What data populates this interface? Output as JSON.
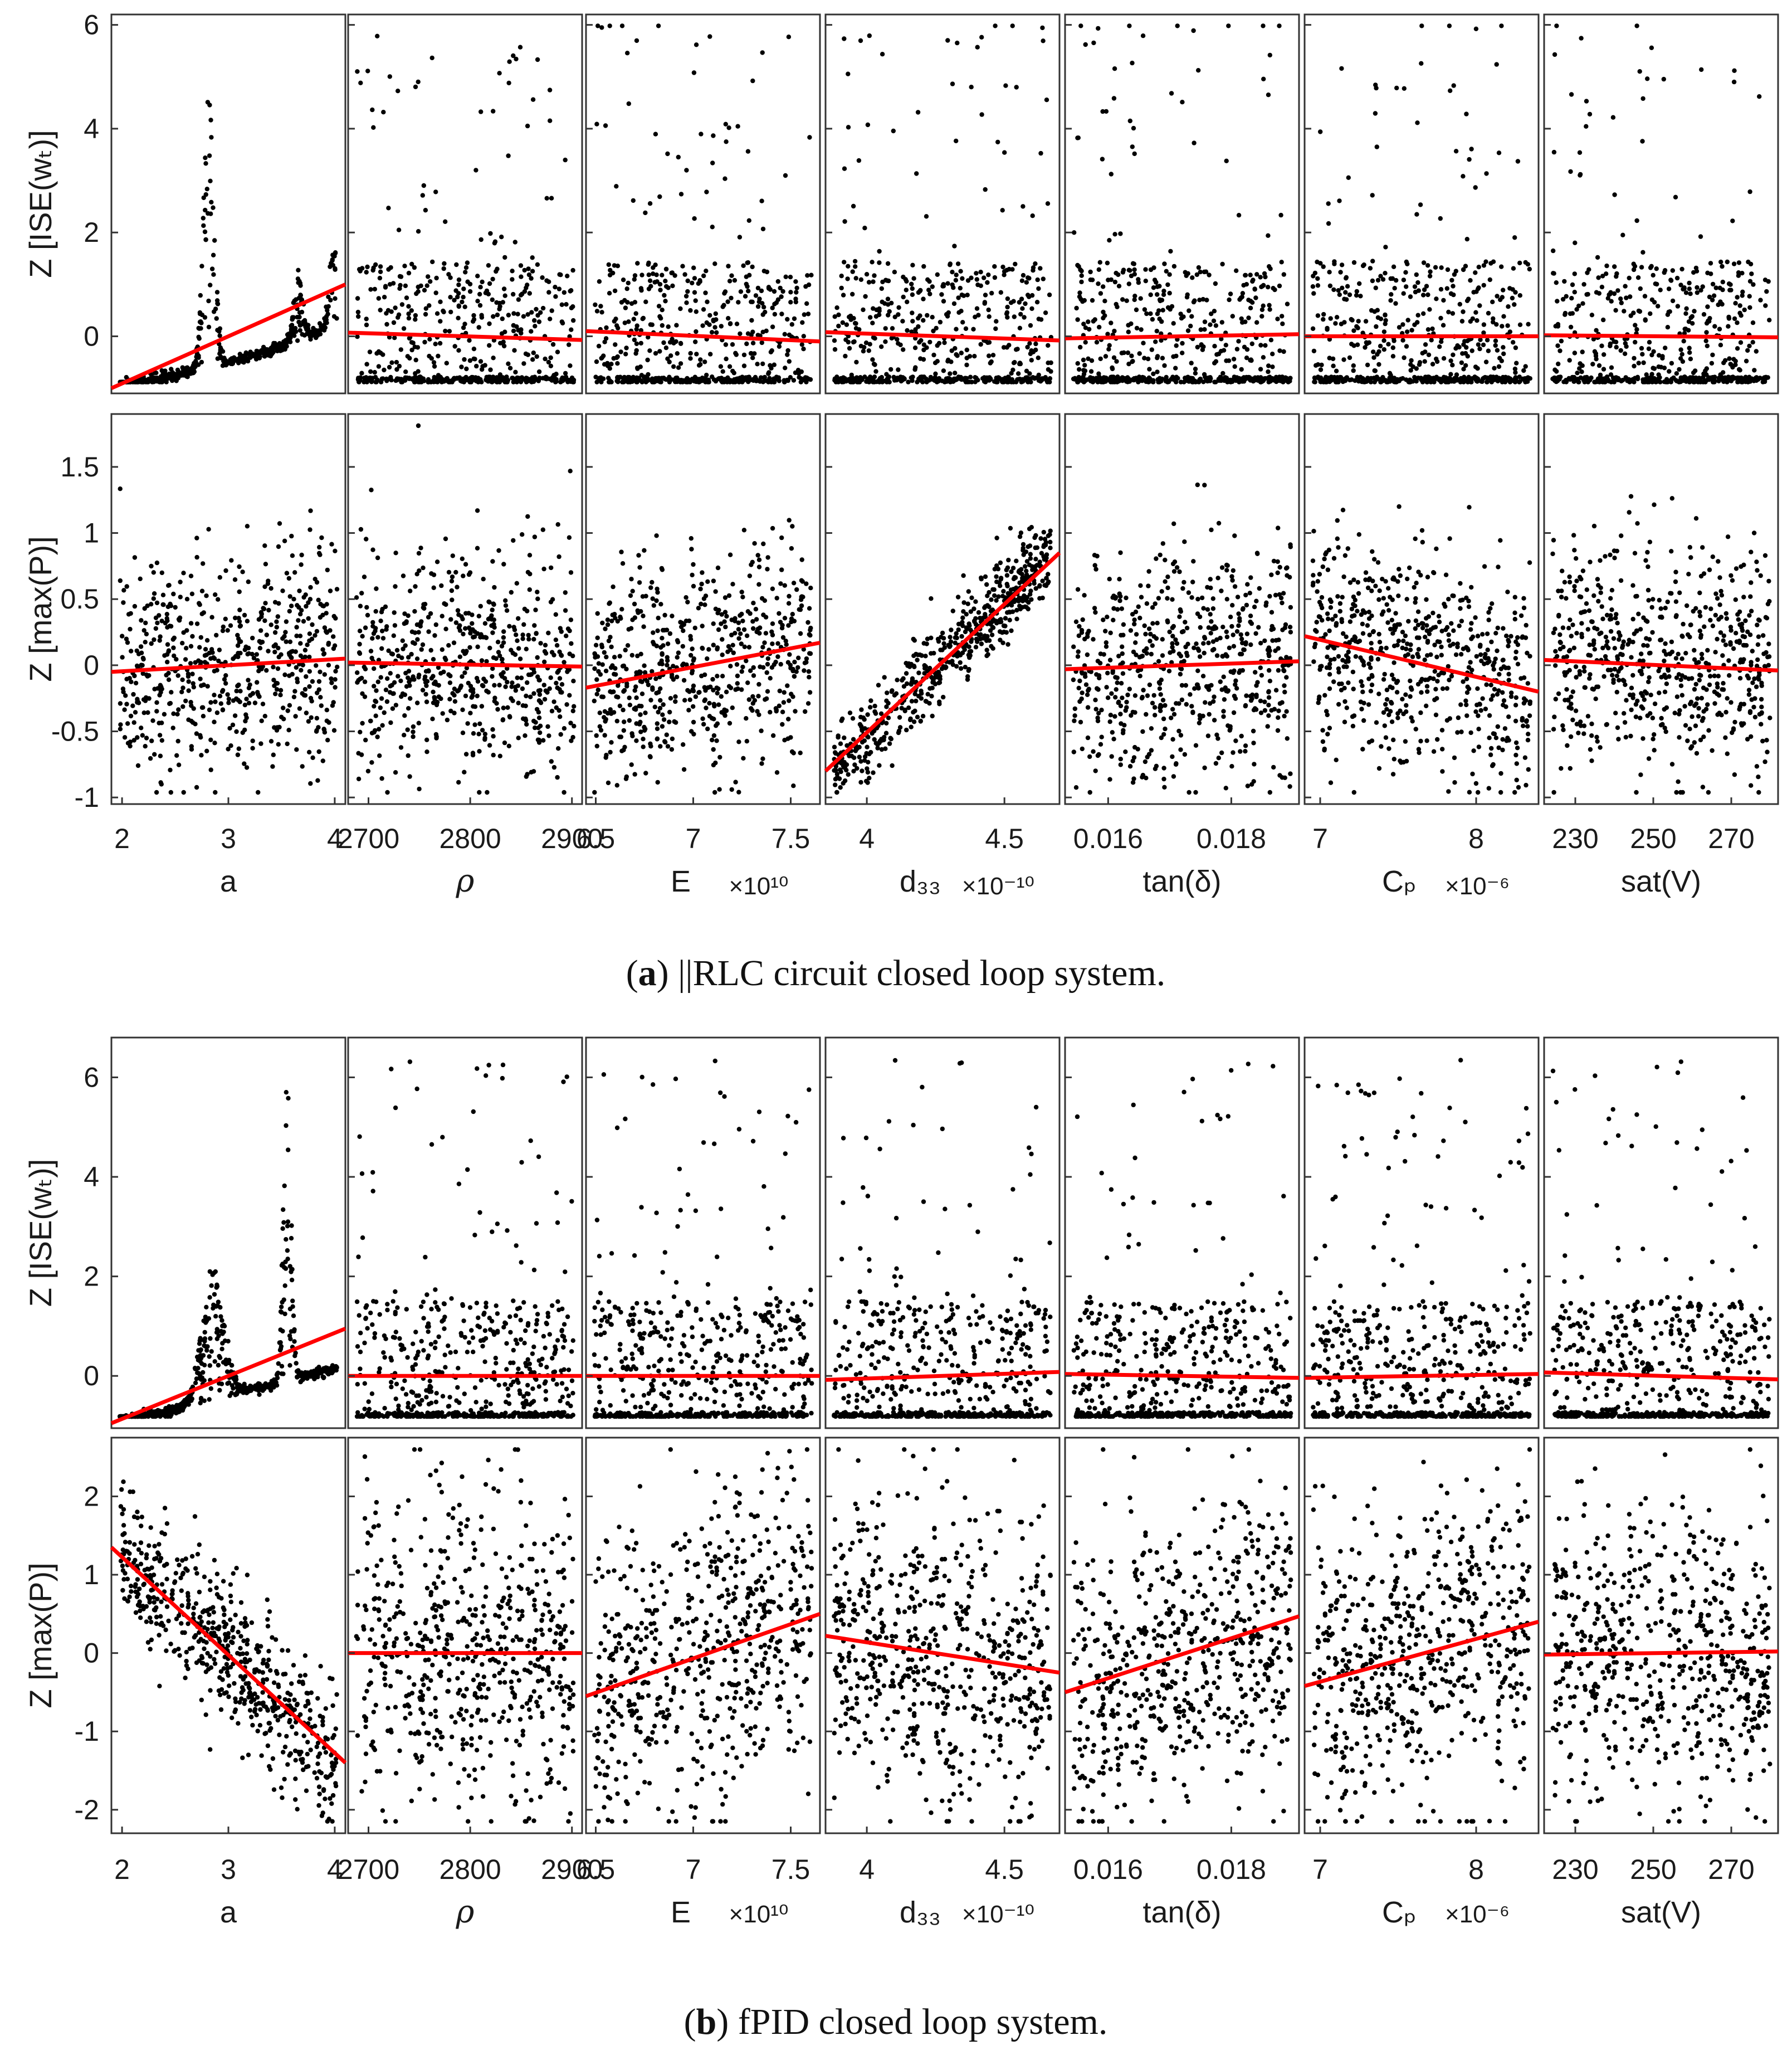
{
  "colors": {
    "points": "#000000",
    "fit_line": "#ff0000",
    "axes": "#333333"
  },
  "chart_data": [
    {
      "type": "scatter",
      "panel_label": "a",
      "caption": "||RLC circuit closed loop system.",
      "columns": [
        {
          "xlabel": "a",
          "xlim": [
            1.9,
            4.1
          ],
          "ticks": [
            2,
            3,
            4
          ],
          "tick_labels": [
            "2",
            "3",
            "4"
          ],
          "multiplier": ""
        },
        {
          "xlabel": "ρ",
          "xlim": [
            2680,
            2910
          ],
          "ticks": [
            2700,
            2800,
            2900
          ],
          "tick_labels": [
            "2700",
            "2800",
            "2900"
          ],
          "multiplier": ""
        },
        {
          "xlabel": "E",
          "xlim": [
            6.45,
            7.65
          ],
          "ticks": [
            6.5,
            7,
            7.5
          ],
          "tick_labels": [
            "6.5",
            "7",
            "7.5"
          ],
          "multiplier": "×10¹⁰"
        },
        {
          "xlabel": "d₃₃",
          "xlim": [
            3.85,
            4.7
          ],
          "ticks": [
            4,
            4.5
          ],
          "tick_labels": [
            "4",
            "4.5"
          ],
          "multiplier": "×10⁻¹⁰"
        },
        {
          "xlabel": "tan(δ)",
          "xlim": [
            0.0153,
            0.0191
          ],
          "ticks": [
            0.016,
            0.018
          ],
          "tick_labels": [
            "0.016",
            "0.018"
          ],
          "multiplier": ""
        },
        {
          "xlabel": "Cₚ",
          "xlim": [
            6.9,
            8.4
          ],
          "ticks": [
            7,
            8
          ],
          "tick_labels": [
            "7",
            "8"
          ],
          "multiplier": "×10⁻⁶"
        },
        {
          "xlabel": "sat(V)",
          "xlim": [
            222,
            282
          ],
          "ticks": [
            230,
            250,
            270
          ],
          "tick_labels": [
            "230",
            "250",
            "270"
          ],
          "multiplier": ""
        }
      ],
      "rows": [
        {
          "ylabel": "Z [ISE(wₜ)]",
          "ylim": [
            -1.1,
            6.2
          ],
          "yticks": [
            0,
            2,
            4,
            6
          ],
          "ytick_labels": [
            "0",
            "2",
            "4",
            "6"
          ],
          "fit_lines": [
            [
              -1.0,
              1.0
            ],
            [
              0.07,
              -0.07
            ],
            [
              0.1,
              -0.1
            ],
            [
              0.08,
              -0.08
            ],
            [
              -0.04,
              0.04
            ],
            [
              0.0,
              0.0
            ],
            [
              0.02,
              -0.02
            ]
          ]
        },
        {
          "ylabel": "Z [max(P)]",
          "ylim": [
            -1.05,
            1.9
          ],
          "yticks": [
            -1,
            -0.5,
            0,
            0.5,
            1,
            1.5
          ],
          "ytick_labels": [
            "-1",
            "-0.5",
            "0",
            "0.5",
            "1",
            "1.5"
          ],
          "fit_lines": [
            [
              -0.05,
              0.05
            ],
            [
              0.02,
              -0.01
            ],
            [
              -0.17,
              0.17
            ],
            [
              -0.8,
              0.85
            ],
            [
              -0.03,
              0.03
            ],
            [
              0.22,
              -0.2
            ],
            [
              0.04,
              -0.04
            ]
          ]
        }
      ]
    },
    {
      "type": "scatter",
      "panel_label": "b",
      "caption": "fPID closed loop system.",
      "columns": [
        {
          "xlabel": "a",
          "xlim": [
            1.9,
            4.1
          ],
          "ticks": [
            2,
            3,
            4
          ],
          "tick_labels": [
            "2",
            "3",
            "4"
          ],
          "multiplier": ""
        },
        {
          "xlabel": "ρ",
          "xlim": [
            2680,
            2910
          ],
          "ticks": [
            2700,
            2800,
            2900
          ],
          "tick_labels": [
            "2700",
            "2800",
            "2900"
          ],
          "multiplier": ""
        },
        {
          "xlabel": "E",
          "xlim": [
            6.45,
            7.65
          ],
          "ticks": [
            6.5,
            7,
            7.5
          ],
          "tick_labels": [
            "6.5",
            "7",
            "7.5"
          ],
          "multiplier": "×10¹⁰"
        },
        {
          "xlabel": "d₃₃",
          "xlim": [
            3.85,
            4.7
          ],
          "ticks": [
            4,
            4.5
          ],
          "tick_labels": [
            "4",
            "4.5"
          ],
          "multiplier": "×10⁻¹⁰"
        },
        {
          "xlabel": "tan(δ)",
          "xlim": [
            0.0153,
            0.0191
          ],
          "ticks": [
            0.016,
            0.018
          ],
          "tick_labels": [
            "0.016",
            "0.018"
          ],
          "multiplier": ""
        },
        {
          "xlabel": "Cₚ",
          "xlim": [
            6.9,
            8.4
          ],
          "ticks": [
            7,
            8
          ],
          "tick_labels": [
            "7",
            "8"
          ],
          "multiplier": "×10⁻⁶"
        },
        {
          "xlabel": "sat(V)",
          "xlim": [
            222,
            282
          ],
          "ticks": [
            230,
            250,
            270
          ],
          "tick_labels": [
            "230",
            "250",
            "270"
          ],
          "multiplier": ""
        }
      ],
      "rows": [
        {
          "ylabel": "Z [ISE(wₜ)]",
          "ylim": [
            -1.05,
            6.8
          ],
          "yticks": [
            0,
            2,
            4,
            6
          ],
          "ytick_labels": [
            "0",
            "2",
            "4",
            "6"
          ],
          "fit_lines": [
            [
              -0.95,
              0.95
            ],
            [
              0.0,
              0.0
            ],
            [
              0.0,
              0.0
            ],
            [
              -0.08,
              0.08
            ],
            [
              0.04,
              -0.04
            ],
            [
              -0.04,
              0.04
            ],
            [
              0.07,
              -0.07
            ]
          ]
        },
        {
          "ylabel": "Z [max(P)]",
          "ylim": [
            -2.3,
            2.75
          ],
          "yticks": [
            -2,
            -1,
            0,
            1,
            2
          ],
          "ytick_labels": [
            "-2",
            "-1",
            "0",
            "1",
            "2"
          ],
          "fit_lines": [
            [
              1.35,
              -1.4
            ],
            [
              0.0,
              0.0
            ],
            [
              -0.55,
              0.5
            ],
            [
              0.22,
              -0.25
            ],
            [
              -0.5,
              0.47
            ],
            [
              -0.42,
              0.4
            ],
            [
              -0.02,
              0.02
            ]
          ]
        }
      ]
    }
  ]
}
